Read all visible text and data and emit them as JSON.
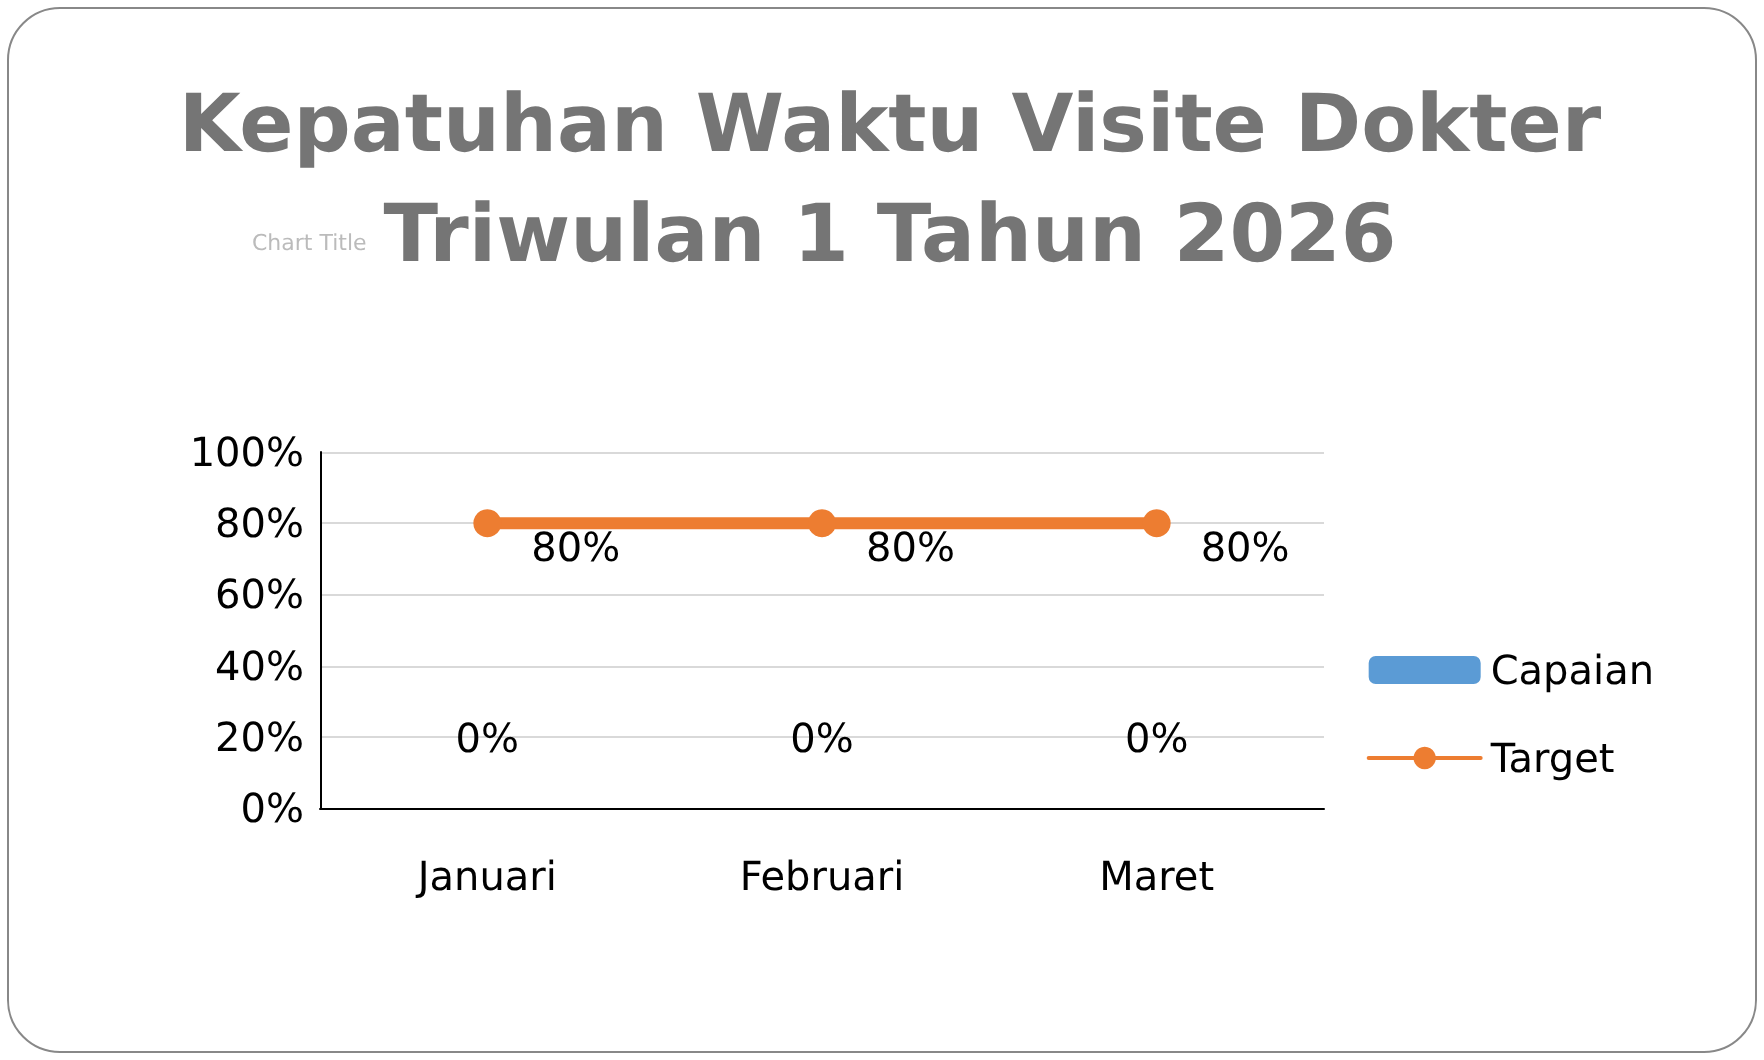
{
  "chart_data": {
    "type": "bar",
    "title": "Kepatuhan Waktu Visite Dokter\nTriwulan 1 Tahun 2026",
    "annotations": [
      "Chart Title"
    ],
    "categories": [
      "Januari",
      "Februari",
      "Maret"
    ],
    "series": [
      {
        "name": "Capaian",
        "color": "#5b9bd5",
        "values": [
          0,
          0,
          0
        ],
        "value_labels": [
          "0%",
          "0%",
          "0%"
        ]
      },
      {
        "name": "Target",
        "type": "line",
        "color": "#ed7d31",
        "values": [
          80,
          80,
          80
        ],
        "value_labels": [
          "80%",
          "80%",
          "80%"
        ]
      }
    ],
    "ylim": [
      0,
      100
    ],
    "yticks": [
      {
        "value": 0,
        "label": "0%"
      },
      {
        "value": 20,
        "label": "20%"
      },
      {
        "value": 40,
        "label": "40%"
      },
      {
        "value": 60,
        "label": "60%"
      },
      {
        "value": 80,
        "label": "80%"
      },
      {
        "value": 100,
        "label": "100%"
      }
    ],
    "grid": "y",
    "legend": "right",
    "marker": "circle",
    "line_style": "solid"
  }
}
